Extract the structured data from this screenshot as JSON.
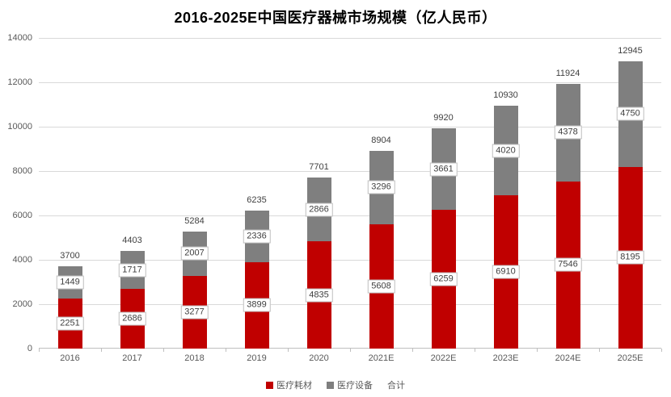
{
  "title": "2016-2025E中国医疗器械市场规模（亿人民币）",
  "chart_data": {
    "type": "bar",
    "stacked": true,
    "title": "2016-2025E中国医疗器械市场规模（亿人民币）",
    "categories": [
      "2016",
      "2017",
      "2018",
      "2019",
      "2020",
      "2021E",
      "2022E",
      "2023E",
      "2024E",
      "2025E"
    ],
    "series": [
      {
        "name": "医疗耗材",
        "color": "#C00000",
        "values": [
          2251,
          2686,
          3277,
          3899,
          4835,
          5608,
          6259,
          6910,
          7546,
          8195
        ]
      },
      {
        "name": "医疗设备",
        "color": "#7F7F7F",
        "values": [
          1449,
          1717,
          2007,
          2336,
          2866,
          3296,
          3661,
          4020,
          4378,
          4750
        ]
      }
    ],
    "totals": {
      "name": "合计",
      "values": [
        3700,
        4403,
        5284,
        6235,
        7701,
        8904,
        9920,
        10930,
        11924,
        12945
      ]
    },
    "xlabel": "",
    "ylabel": "",
    "ylim": [
      0,
      14000
    ],
    "yticks": [
      0,
      2000,
      4000,
      6000,
      8000,
      10000,
      12000,
      14000
    ],
    "grid": true,
    "legend_position": "bottom"
  },
  "legend": {
    "items": [
      {
        "label": "医疗耗材",
        "color": "#C00000"
      },
      {
        "label": "医疗设备",
        "color": "#7F7F7F"
      },
      {
        "label": "合计",
        "color": null
      }
    ]
  }
}
